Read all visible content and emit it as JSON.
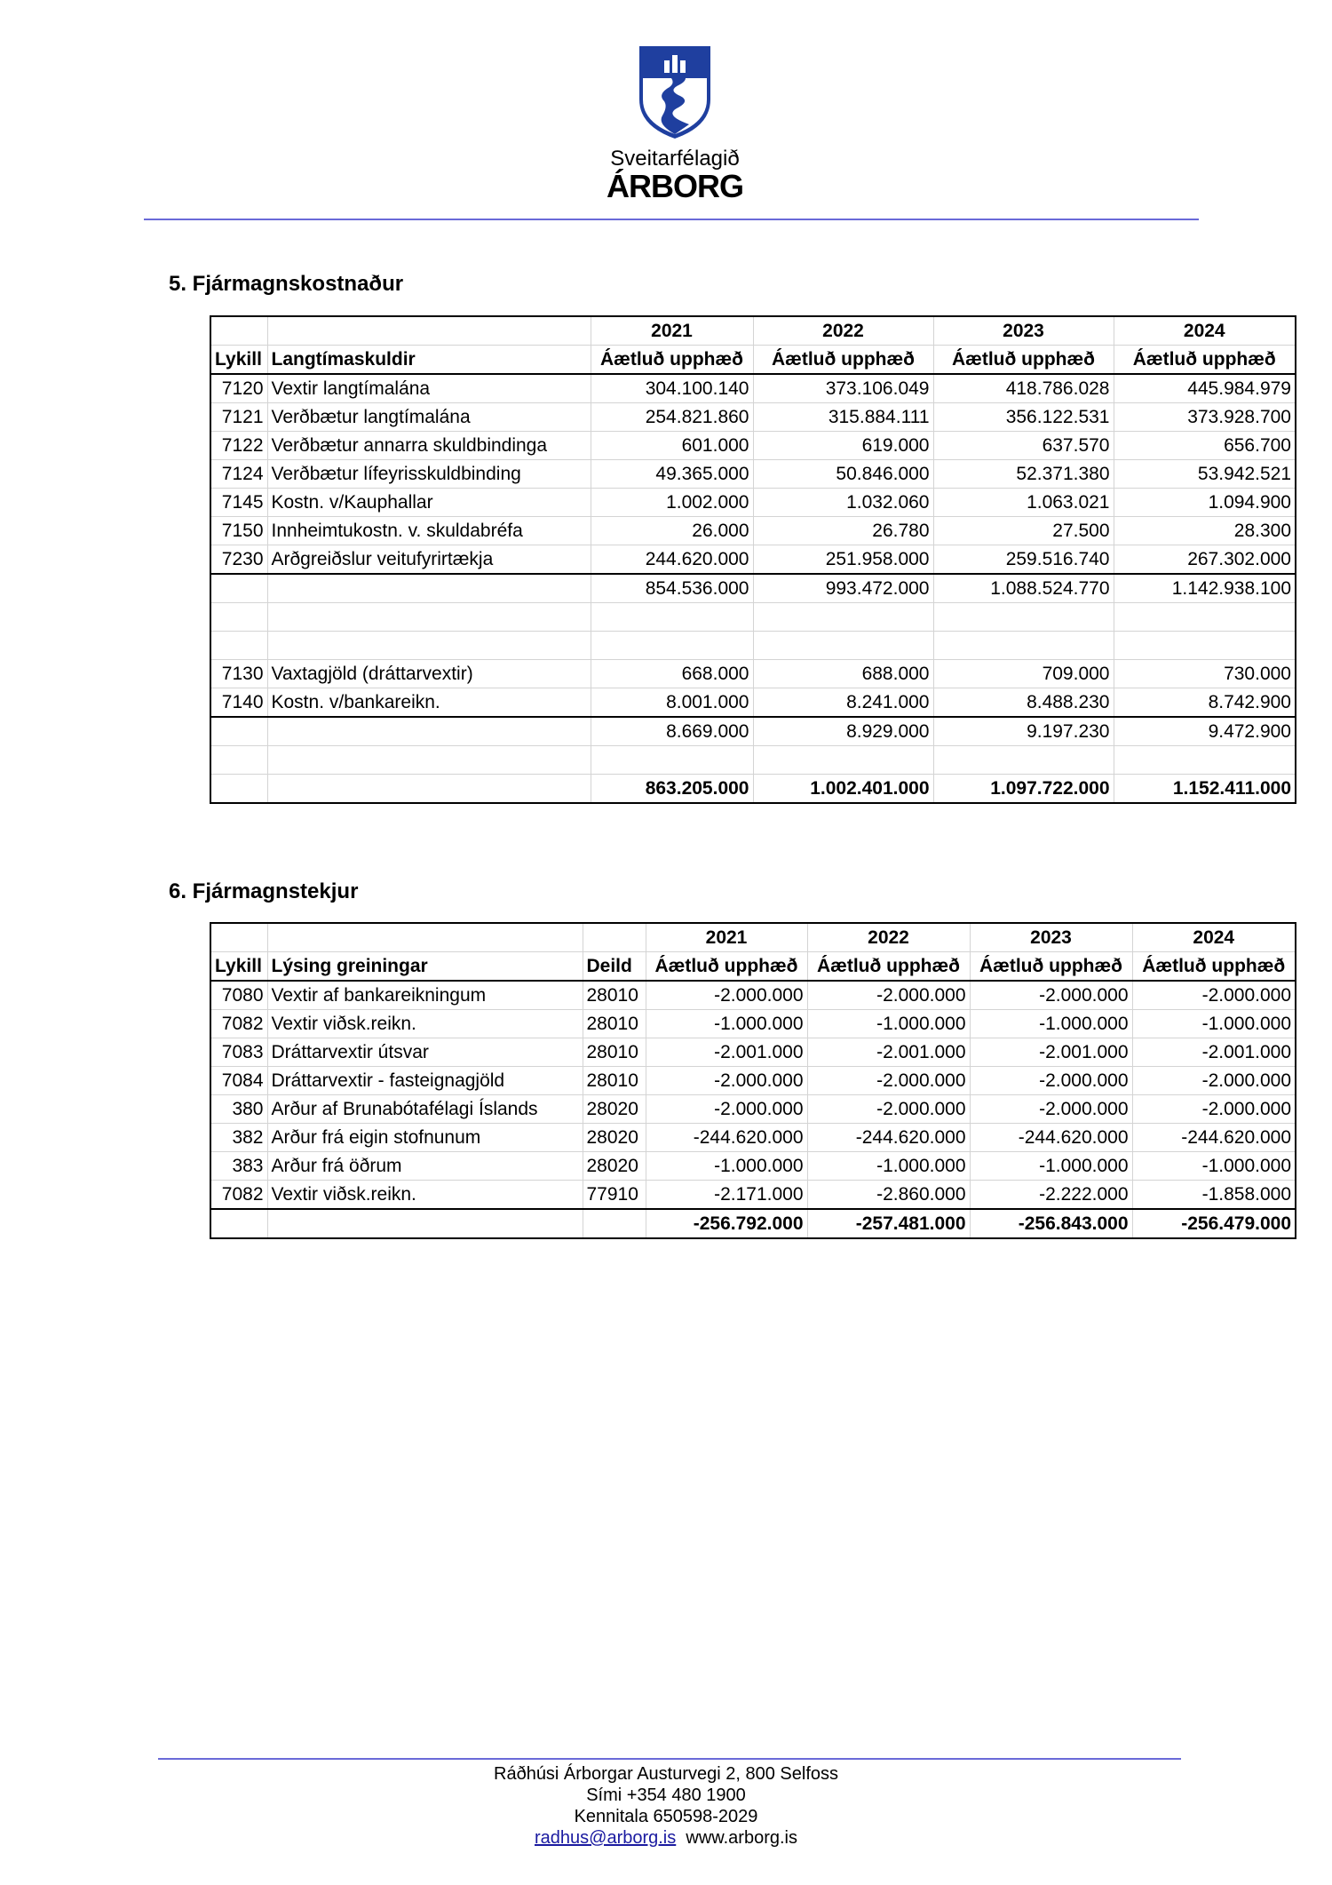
{
  "logo": {
    "line1": "Sveitarfélagið",
    "line2": "ÁRBORG",
    "color": "#1f3f9f"
  },
  "section5": {
    "heading": "5.  Fjármagnskostnaður",
    "years": [
      "2021",
      "2022",
      "2023",
      "2024"
    ],
    "col_key": "Lykill",
    "col_desc": "Langtímaskuldir",
    "col_amount": "Áætluð upphæð",
    "rows": [
      {
        "key": "7120",
        "desc": "Vextir langtímalána",
        "values": [
          "304.100.140",
          "373.106.049",
          "418.786.028",
          "445.984.979"
        ]
      },
      {
        "key": "7121",
        "desc": "Verðbætur langtímalána",
        "values": [
          "254.821.860",
          "315.884.111",
          "356.122.531",
          "373.928.700"
        ]
      },
      {
        "key": "7122",
        "desc": "Verðbætur annarra skuldbindinga",
        "values": [
          "601.000",
          "619.000",
          "637.570",
          "656.700"
        ]
      },
      {
        "key": "7124",
        "desc": "Verðbætur lífeyrisskuldbinding",
        "values": [
          "49.365.000",
          "50.846.000",
          "52.371.380",
          "53.942.521"
        ]
      },
      {
        "key": "7145",
        "desc": "Kostn. v/Kauphallar",
        "values": [
          "1.002.000",
          "1.032.060",
          "1.063.021",
          "1.094.900"
        ]
      },
      {
        "key": "7150",
        "desc": "Innheimtukostn. v. skuldabréfa",
        "values": [
          "26.000",
          "26.780",
          "27.500",
          "28.300"
        ]
      },
      {
        "key": "7230",
        "desc": "Arðgreiðslur veitufyrirtækja",
        "values": [
          "244.620.000",
          "251.958.000",
          "259.516.740",
          "267.302.000"
        ]
      },
      {
        "key": "",
        "desc": "",
        "values": [
          "854.536.000",
          "993.472.000",
          "1.088.524.770",
          "1.142.938.100"
        ],
        "type": "subtotal"
      },
      {
        "key": "",
        "desc": "",
        "values": [
          "",
          "",
          "",
          ""
        ]
      },
      {
        "key": "",
        "desc": "",
        "values": [
          "",
          "",
          "",
          ""
        ]
      },
      {
        "key": "7130",
        "desc": "Vaxtagjöld (dráttarvextir)",
        "values": [
          "668.000",
          "688.000",
          "709.000",
          "730.000"
        ]
      },
      {
        "key": "7140",
        "desc": "Kostn. v/bankareikn.",
        "values": [
          "8.001.000",
          "8.241.000",
          "8.488.230",
          "8.742.900"
        ]
      },
      {
        "key": "",
        "desc": "",
        "values": [
          "8.669.000",
          "8.929.000",
          "9.197.230",
          "9.472.900"
        ],
        "type": "subtotal"
      },
      {
        "key": "",
        "desc": "",
        "values": [
          "",
          "",
          "",
          ""
        ]
      },
      {
        "key": "",
        "desc": "",
        "values": [
          "863.205.000",
          "1.002.401.000",
          "1.097.722.000",
          "1.152.411.000"
        ],
        "type": "total"
      }
    ]
  },
  "section6": {
    "heading": "6.  Fjármagnstekjur",
    "years": [
      "2021",
      "2022",
      "2023",
      "2024"
    ],
    "col_key": "Lykill",
    "col_desc": "Lýsing greiningar",
    "col_dept": "Deild",
    "col_amount": "Áætluð upphæð",
    "rows": [
      {
        "key": "7080",
        "desc": "Vextir af bankareikningum",
        "dept": "28010",
        "values": [
          "-2.000.000",
          "-2.000.000",
          "-2.000.000",
          "-2.000.000"
        ]
      },
      {
        "key": "7082",
        "desc": "Vextir viðsk.reikn.",
        "dept": "28010",
        "values": [
          "-1.000.000",
          "-1.000.000",
          "-1.000.000",
          "-1.000.000"
        ]
      },
      {
        "key": "7083",
        "desc": "Dráttarvextir útsvar",
        "dept": "28010",
        "values": [
          "-2.001.000",
          "-2.001.000",
          "-2.001.000",
          "-2.001.000"
        ]
      },
      {
        "key": "7084",
        "desc": "Dráttarvextir - fasteignagjöld",
        "dept": "28010",
        "values": [
          "-2.000.000",
          "-2.000.000",
          "-2.000.000",
          "-2.000.000"
        ]
      },
      {
        "key": "380",
        "desc": "Arður af Brunabótafélagi Íslands",
        "dept": "28020",
        "values": [
          "-2.000.000",
          "-2.000.000",
          "-2.000.000",
          "-2.000.000"
        ]
      },
      {
        "key": "382",
        "desc": "Arður frá eigin stofnunum",
        "dept": "28020",
        "values": [
          "-244.620.000",
          "-244.620.000",
          "-244.620.000",
          "-244.620.000"
        ]
      },
      {
        "key": "383",
        "desc": "Arður frá öðrum",
        "dept": "28020",
        "values": [
          "-1.000.000",
          "-1.000.000",
          "-1.000.000",
          "-1.000.000"
        ]
      },
      {
        "key": "7082",
        "desc": "Vextir viðsk.reikn.",
        "dept": "77910",
        "values": [
          "-2.171.000",
          "-2.860.000",
          "-2.222.000",
          "-1.858.000"
        ]
      },
      {
        "key": "",
        "desc": "",
        "dept": "",
        "values": [
          "-256.792.000",
          "-257.481.000",
          "-256.843.000",
          "-256.479.000"
        ],
        "type": "total"
      }
    ]
  },
  "footer": {
    "address": "Ráðhúsi Árborgar  Austurvegi 2, 800 Selfoss",
    "phone": "Sími +354 480 1900",
    "kennitala": "Kennitala 650598-2029",
    "email": "radhus@arborg.is",
    "website": "www.arborg.is"
  }
}
